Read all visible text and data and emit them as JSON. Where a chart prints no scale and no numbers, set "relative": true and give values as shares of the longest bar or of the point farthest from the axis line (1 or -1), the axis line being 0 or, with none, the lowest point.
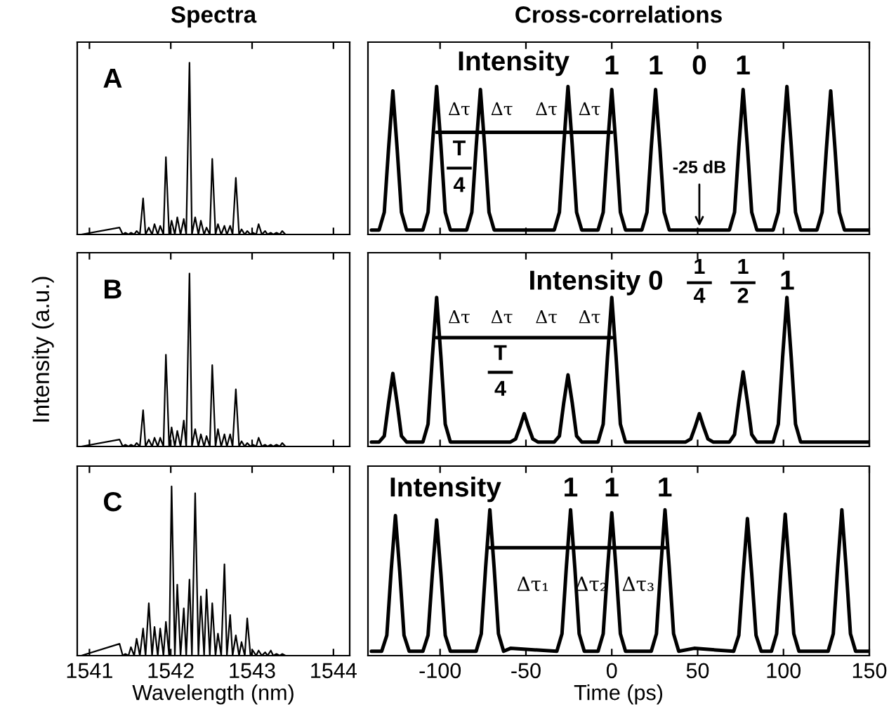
{
  "chart_data": [
    {
      "type": "line",
      "title": "Spectra",
      "relative": true,
      "color": "#000000",
      "xlim": [
        1540.85,
        1544.2
      ],
      "xticks": [
        1541,
        1542,
        1543,
        1544
      ],
      "tick_labels": false,
      "annotations": [
        "A"
      ],
      "x": [
        1540.9,
        1541.37,
        1541.41,
        1541.44,
        1541.48,
        1541.51,
        1541.55,
        1541.58,
        1541.62,
        1541.66,
        1541.69,
        1541.73,
        1541.77,
        1541.8,
        1541.84,
        1541.87,
        1541.91,
        1541.94,
        1541.98,
        1542.01,
        1542.05,
        1542.08,
        1542.12,
        1542.16,
        1542.19,
        1542.23,
        1542.26,
        1542.3,
        1542.34,
        1542.37,
        1542.41,
        1542.44,
        1542.48,
        1542.51,
        1542.55,
        1542.58,
        1542.62,
        1542.66,
        1542.69,
        1542.73,
        1542.76,
        1542.8,
        1542.84,
        1542.87,
        1542.91,
        1542.94,
        1542.98,
        1543.01,
        1543.05,
        1543.08,
        1543.12,
        1543.16,
        1543.19,
        1543.23,
        1543.26,
        1543.3,
        1543.34,
        1543.37,
        1543.41,
        1544.1
      ],
      "values": [
        0,
        0.04,
        0,
        0.01,
        0,
        0.01,
        0,
        0.02,
        0,
        0.21,
        0,
        0.04,
        0,
        0.06,
        0,
        0.05,
        0,
        0.45,
        0,
        0.08,
        0,
        0.1,
        0,
        0.09,
        0,
        1,
        0,
        0.1,
        0,
        0.08,
        0,
        0.04,
        0,
        0.44,
        0,
        0.06,
        0,
        0.05,
        0,
        0.05,
        0,
        0.33,
        0,
        0.03,
        0,
        0.02,
        0,
        0.01,
        0,
        0.06,
        0,
        0.02,
        0,
        0.01,
        0,
        0.01,
        0,
        0.02,
        0,
        0
      ]
    },
    {
      "type": "line",
      "title": "Cross-correlations",
      "relative": true,
      "xlim": [
        -142,
        150
      ],
      "xticks": [
        -100,
        -50,
        0,
        50,
        100,
        150
      ],
      "tick_labels": false,
      "series": [
        {
          "color": "#000000",
          "x": [
            -140,
            -135.5,
            -132.5,
            -130,
            -127.5,
            -125,
            -122.5,
            -119.5,
            -110,
            -107,
            -104.5,
            -102,
            -99.5,
            -97,
            -94,
            -84.5,
            -81.5,
            -79,
            -76.5,
            -74,
            -71.5,
            -68.5,
            -33.5,
            -30.5,
            -28,
            -25.5,
            -23,
            -20.5,
            -17.5,
            -8,
            -5,
            -2.5,
            0,
            2.5,
            5,
            8,
            17.5,
            20.5,
            23,
            25.5,
            28,
            30.5,
            33.5,
            68.5,
            71.5,
            74,
            76.5,
            79,
            81.5,
            84.5,
            94,
            97,
            99.5,
            102,
            104.5,
            107,
            110,
            119.5,
            122.5,
            125,
            127.5,
            130,
            132.5,
            135.5,
            150
          ],
          "values": [
            0.03,
            0.03,
            0.15,
            0.58,
            0.97,
            0.58,
            0.15,
            0.03,
            0.03,
            0.15,
            0.6,
            1,
            0.6,
            0.15,
            0.03,
            0.03,
            0.15,
            0.59,
            0.98,
            0.59,
            0.15,
            0.03,
            0.03,
            0.15,
            0.6,
            1,
            0.6,
            0.15,
            0.03,
            0.03,
            0.15,
            0.59,
            0.98,
            0.59,
            0.15,
            0.03,
            0.03,
            0.15,
            0.59,
            0.98,
            0.59,
            0.15,
            0.03,
            0.03,
            0.15,
            0.59,
            0.98,
            0.59,
            0.15,
            0.03,
            0.03,
            0.15,
            0.6,
            1,
            0.6,
            0.15,
            0.03,
            0.03,
            0.15,
            0.58,
            0.97,
            0.58,
            0.15,
            0.03,
            0.03
          ]
        },
        {
          "color": "#000000",
          "x": [
            -102,
            -76.5,
            -51,
            -25.5,
            0
          ],
          "values": [
            0.69,
            0.69,
            0.69,
            0.69,
            0.69
          ]
        }
      ],
      "annotations": [
        "Intensity",
        "1",
        "1",
        "0",
        "1",
        "Δτ",
        "Δτ",
        "Δτ",
        "Δτ",
        "T",
        "4",
        {
          "text": "-25 dB",
          "x": 51,
          "y": 0.03
        }
      ]
    },
    {
      "type": "line",
      "relative": true,
      "color": "#000000",
      "ylabel": "Intensity (a.u.)",
      "xlim": [
        1540.85,
        1544.2
      ],
      "xticks": [
        1541,
        1542,
        1543,
        1544
      ],
      "tick_labels": false,
      "annotations": [
        "B"
      ],
      "x": [
        1540.9,
        1541.37,
        1541.41,
        1541.44,
        1541.48,
        1541.51,
        1541.55,
        1541.58,
        1541.62,
        1541.66,
        1541.69,
        1541.73,
        1541.77,
        1541.8,
        1541.84,
        1541.87,
        1541.91,
        1541.94,
        1541.98,
        1542.01,
        1542.05,
        1542.08,
        1542.12,
        1542.16,
        1542.19,
        1542.23,
        1542.26,
        1542.3,
        1542.34,
        1542.37,
        1542.41,
        1542.44,
        1542.48,
        1542.51,
        1542.55,
        1542.58,
        1542.62,
        1542.66,
        1542.69,
        1542.73,
        1542.76,
        1542.8,
        1542.84,
        1542.87,
        1542.91,
        1542.94,
        1542.98,
        1543.01,
        1543.05,
        1543.08,
        1543.12,
        1543.16,
        1543.19,
        1543.23,
        1543.26,
        1543.3,
        1543.34,
        1543.37,
        1543.41,
        1544.1
      ],
      "values": [
        0,
        0.04,
        0,
        0.01,
        0,
        0.01,
        0,
        0.02,
        0,
        0.21,
        0,
        0.04,
        0,
        0.05,
        0,
        0.05,
        0,
        0.53,
        0,
        0.11,
        0,
        0.09,
        0,
        0.15,
        0,
        1,
        0,
        0.1,
        0,
        0.07,
        0,
        0.06,
        0,
        0.47,
        0,
        0.1,
        0,
        0.07,
        0,
        0.07,
        0,
        0.33,
        0,
        0.03,
        0,
        0.02,
        0,
        0.01,
        0,
        0.05,
        0,
        0.01,
        0,
        0.01,
        0,
        0.01,
        0,
        0.02,
        0,
        0
      ]
    },
    {
      "type": "line",
      "relative": true,
      "xlim": [
        -142,
        150
      ],
      "xticks": [
        -100,
        -50,
        0,
        50,
        100,
        150
      ],
      "tick_labels": false,
      "series": [
        {
          "color": "#000000",
          "x": [
            -140,
            -135.5,
            -132.5,
            -130,
            -127.5,
            -125,
            -122.5,
            -119.5,
            -110,
            -107,
            -104.5,
            -102,
            -99.5,
            -97,
            -94,
            -59,
            -56,
            -53.5,
            -51,
            -48.5,
            -46,
            -43,
            -33.5,
            -30.5,
            -28,
            -25.5,
            -23,
            -20.5,
            -17.5,
            -8,
            -5,
            -2.5,
            0,
            2.5,
            5,
            8,
            43,
            46,
            48.5,
            51,
            53.5,
            56,
            59,
            68.5,
            71.5,
            74,
            76.5,
            79,
            81.5,
            84.5,
            94,
            97,
            99.5,
            102,
            104.5,
            107,
            110,
            150
          ],
          "values": [
            0.03,
            0.03,
            0.07,
            0.29,
            0.49,
            0.29,
            0.07,
            0.03,
            0.03,
            0.15,
            0.6,
            1,
            0.6,
            0.15,
            0.03,
            0.03,
            0.05,
            0.13,
            0.22,
            0.13,
            0.05,
            0.03,
            0.03,
            0.07,
            0.29,
            0.48,
            0.29,
            0.07,
            0.03,
            0.03,
            0.15,
            0.6,
            1,
            0.6,
            0.15,
            0.03,
            0.03,
            0.05,
            0.13,
            0.22,
            0.13,
            0.05,
            0.03,
            0.03,
            0.08,
            0.3,
            0.5,
            0.3,
            0.08,
            0.03,
            0.03,
            0.15,
            0.6,
            1,
            0.6,
            0.15,
            0.03,
            0.03
          ]
        },
        {
          "color": "#000000",
          "x": [
            -102,
            -76.5,
            -51,
            -25.5,
            0
          ],
          "values": [
            0.73,
            0.73,
            0.73,
            0.73,
            0.73
          ]
        }
      ],
      "annotations": [
        "Intensity",
        "0",
        "1",
        "4",
        "1",
        "2",
        "1",
        "Δτ",
        "Δτ",
        "Δτ",
        "Δτ",
        "T",
        "4"
      ]
    },
    {
      "type": "line",
      "relative": true,
      "color": "#000000",
      "xlabel": "Wavelength (nm)",
      "xlim": [
        1540.85,
        1544.2
      ],
      "xticks": [
        1541,
        1542,
        1543,
        1544
      ],
      "tick_labels": "x",
      "annotations": [
        "C"
      ],
      "x": [
        1540.9,
        1541.37,
        1541.41,
        1541.44,
        1541.48,
        1541.51,
        1541.55,
        1541.58,
        1541.62,
        1541.66,
        1541.69,
        1541.73,
        1541.77,
        1541.8,
        1541.84,
        1541.87,
        1541.91,
        1541.94,
        1541.98,
        1542.01,
        1542.05,
        1542.08,
        1542.12,
        1542.16,
        1542.19,
        1542.23,
        1542.26,
        1542.3,
        1542.34,
        1542.37,
        1542.41,
        1542.44,
        1542.48,
        1542.51,
        1542.55,
        1542.58,
        1542.62,
        1542.66,
        1542.69,
        1542.73,
        1542.76,
        1542.8,
        1542.84,
        1542.87,
        1542.91,
        1542.94,
        1542.98,
        1543.01,
        1543.05,
        1543.08,
        1543.12,
        1543.16,
        1543.19,
        1543.23,
        1543.26,
        1543.3,
        1543.34,
        1543.37,
        1543.41,
        1544.1
      ],
      "values": [
        0,
        0.07,
        0,
        0.01,
        0,
        0.05,
        0,
        0.1,
        0,
        0.16,
        0,
        0.31,
        0,
        0.17,
        0,
        0.16,
        0,
        0.2,
        0,
        1,
        0,
        0.42,
        0,
        0.28,
        0,
        0.45,
        0,
        0.96,
        0,
        0.35,
        0,
        0.39,
        0,
        0.31,
        0,
        0.13,
        0,
        0.54,
        0,
        0.24,
        0,
        0.12,
        0,
        0.08,
        0,
        0.22,
        0,
        0.03,
        0,
        0.03,
        0,
        0.02,
        0,
        0.03,
        0,
        0.01,
        0,
        0.01,
        0,
        0
      ]
    },
    {
      "type": "line",
      "relative": true,
      "xlabel": "Time (ps)",
      "xlim": [
        -142,
        150
      ],
      "xticks": [
        -100,
        -50,
        0,
        50,
        100,
        150
      ],
      "tick_labels": "x",
      "series": [
        {
          "color": "#000000",
          "x": [
            -140,
            -134,
            -131,
            -128.5,
            -126,
            -123.5,
            -121,
            -118,
            -110,
            -107,
            -104.5,
            -102,
            -99.5,
            -97,
            -94,
            -79,
            -76,
            -73.5,
            -71,
            -68.5,
            -66,
            -63,
            -59,
            -32,
            -29,
            -26.5,
            -24,
            -21.5,
            -19,
            -16,
            -8,
            -5,
            -2.5,
            0,
            2.5,
            5,
            8,
            23,
            26,
            28.5,
            31,
            33.5,
            36,
            39,
            48,
            71,
            74,
            76.5,
            79,
            81.5,
            84,
            87,
            93,
            96,
            98.5,
            101,
            103.5,
            106,
            109,
            126,
            129,
            131.5,
            134,
            136.5,
            139,
            142,
            150
          ],
          "values": [
            0.03,
            0.03,
            0.14,
            0.58,
            0.96,
            0.58,
            0.14,
            0.03,
            0.03,
            0.14,
            0.56,
            0.93,
            0.56,
            0.14,
            0.03,
            0.03,
            0.15,
            0.6,
            1,
            0.6,
            0.15,
            0.03,
            0.05,
            0.03,
            0.15,
            0.6,
            1,
            0.6,
            0.15,
            0.03,
            0.03,
            0.15,
            0.59,
            0.98,
            0.59,
            0.15,
            0.03,
            0.03,
            0.15,
            0.6,
            1,
            0.6,
            0.15,
            0.03,
            0.05,
            0.03,
            0.14,
            0.56,
            0.94,
            0.56,
            0.14,
            0.03,
            0.03,
            0.15,
            0.58,
            0.97,
            0.58,
            0.15,
            0.03,
            0.03,
            0.15,
            0.6,
            1,
            0.6,
            0.15,
            0.03,
            0.03
          ]
        },
        {
          "color": "#000000",
          "x": [
            -71,
            -24,
            0,
            31
          ],
          "values": [
            0.74,
            0.74,
            0.74,
            0.74
          ]
        }
      ],
      "annotations": [
        "Intensity",
        "1",
        "1",
        "1",
        "Δτ₁",
        "Δτ₂",
        "Δτ₃"
      ]
    }
  ]
}
